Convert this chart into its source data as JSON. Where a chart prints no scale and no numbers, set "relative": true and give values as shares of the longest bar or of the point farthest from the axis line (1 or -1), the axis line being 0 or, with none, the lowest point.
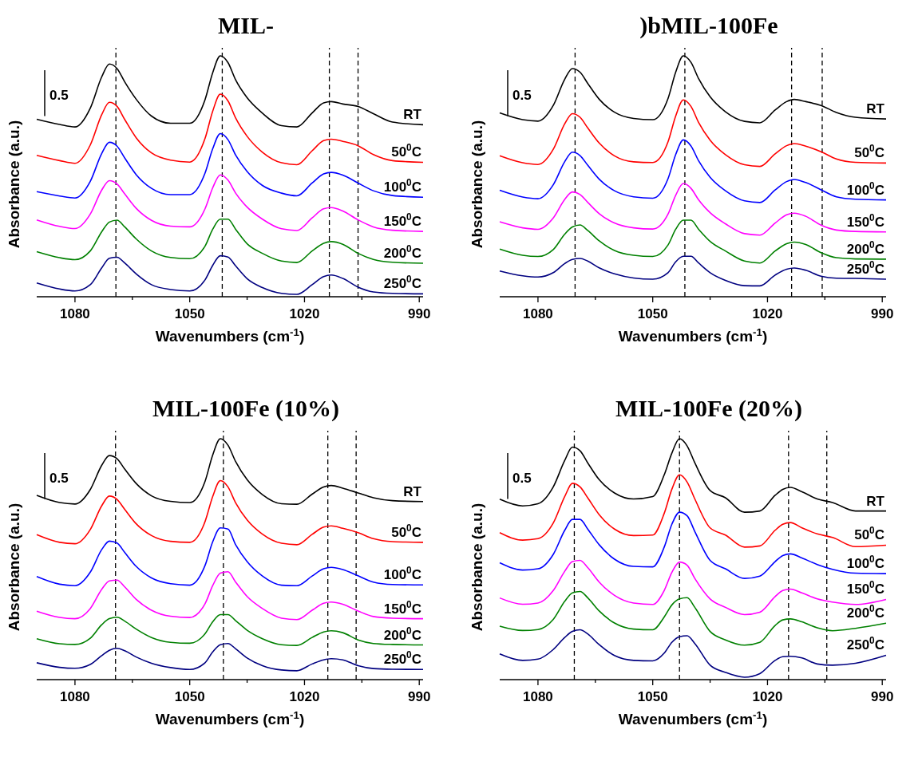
{
  "chart_data": [
    {
      "type": "line",
      "title": "MIL-",
      "xlabel": "Wavenumbers (cm$^{-1}$)",
      "ylabel": "Absorbance (a.u.)",
      "relative": true,
      "xlim": [
        1090,
        989
      ],
      "xticks": [
        1080,
        {
          "value": 1065,
          "label": null
        },
        1050,
        {
          "value": 1035,
          "label": null
        },
        1020,
        {
          "value": 1005,
          "label": null
        },
        990
      ],
      "annotations": [
        "0.5"
      ],
      "x": [
        1090,
        1084,
        1080,
        1076,
        1073,
        1071,
        1069,
        1067,
        1064,
        1060,
        1055,
        1050,
        1046,
        1044,
        1042,
        1040,
        1038,
        1035,
        1031,
        1026,
        1022,
        1018,
        1015,
        1013,
        1010,
        1006,
        1002,
        997,
        989
      ],
      "ref_lines": [
        {
          "axis": "x",
          "value": 1069.3,
          "line_style": "dashed",
          "color": "#000000"
        },
        {
          "axis": "x",
          "value": 1041.5,
          "line_style": "dashed",
          "color": "#000000"
        },
        {
          "axis": "x",
          "value": 1013.5,
          "line_style": "dashed",
          "color": "#000000"
        },
        {
          "axis": "x",
          "value": 1006,
          "line_style": "dashed",
          "color": "#000000"
        }
      ],
      "series": [
        {
          "name": "RT",
          "color": "#000000",
          "values": [
            0.737,
            0.715,
            0.705,
            0.783,
            0.913,
            0.966,
            0.947,
            0.892,
            0.82,
            0.75,
            0.72,
            0.72,
            0.818,
            0.93,
            1.0,
            0.972,
            0.9,
            0.826,
            0.762,
            0.71,
            0.705,
            0.763,
            0.805,
            0.81,
            0.8,
            0.79,
            0.76,
            0.725,
            0.714
          ]
        },
        {
          "name": "50$^{0}$C",
          "color": "#ff0000",
          "values": [
            0.587,
            0.565,
            0.554,
            0.63,
            0.756,
            0.807,
            0.79,
            0.736,
            0.66,
            0.597,
            0.567,
            0.559,
            0.657,
            0.77,
            0.841,
            0.813,
            0.742,
            0.666,
            0.6,
            0.556,
            0.548,
            0.606,
            0.648,
            0.654,
            0.645,
            0.627,
            0.59,
            0.565,
            0.558
          ]
        },
        {
          "name": "100$^{0}$C",
          "color": "#0000ff",
          "values": [
            0.436,
            0.418,
            0.41,
            0.479,
            0.595,
            0.641,
            0.625,
            0.576,
            0.507,
            0.45,
            0.424,
            0.424,
            0.513,
            0.614,
            0.677,
            0.652,
            0.588,
            0.52,
            0.462,
            0.43,
            0.419,
            0.472,
            0.51,
            0.516,
            0.505,
            0.472,
            0.44,
            0.42,
            0.413
          ]
        },
        {
          "name": "150$^{0}$C",
          "color": "#ff00ff",
          "values": [
            0.319,
            0.292,
            0.283,
            0.343,
            0.443,
            0.482,
            0.468,
            0.427,
            0.367,
            0.317,
            0.293,
            0.29,
            0.365,
            0.452,
            0.506,
            0.484,
            0.43,
            0.372,
            0.322,
            0.282,
            0.275,
            0.327,
            0.365,
            0.37,
            0.356,
            0.319,
            0.29,
            0.276,
            0.271
          ]
        },
        {
          "name": "200$^{0}$C",
          "color": "#008000",
          "values": [
            0.187,
            0.162,
            0.154,
            0.19,
            0.27,
            0.31,
            0.318,
            0.29,
            0.24,
            0.19,
            0.163,
            0.158,
            0.21,
            0.28,
            0.322,
            0.322,
            0.28,
            0.22,
            0.18,
            0.148,
            0.142,
            0.19,
            0.222,
            0.229,
            0.218,
            0.18,
            0.155,
            0.143,
            0.139
          ]
        },
        {
          "name": "250$^{0}$C",
          "color": "#000080",
          "values": [
            0.057,
            0.032,
            0.024,
            0.05,
            0.12,
            0.16,
            0.164,
            0.14,
            0.095,
            0.05,
            0.03,
            0.024,
            0.07,
            0.13,
            0.17,
            0.165,
            0.128,
            0.075,
            0.038,
            0.014,
            0.01,
            0.05,
            0.084,
            0.09,
            0.076,
            0.04,
            0.02,
            0.014,
            0.012
          ]
        }
      ]
    },
    {
      "type": "line",
      "title": ")bMIL-100Fe",
      "xlabel": "Wavenumbers (cm$^{-1}$)",
      "ylabel": "Absorbance (a.u.)",
      "relative": true,
      "xlim": [
        1090,
        989
      ],
      "xticks": [
        1080,
        {
          "value": 1065,
          "label": null
        },
        1050,
        {
          "value": 1035,
          "label": null
        },
        1020,
        {
          "value": 1005,
          "label": null
        },
        990
      ],
      "annotations": [
        "0.5"
      ],
      "x": [
        1090,
        1084,
        1080,
        1076,
        1073,
        1071,
        1069,
        1067,
        1064,
        1060,
        1055,
        1050,
        1046,
        1044,
        1042,
        1040,
        1038,
        1035,
        1031,
        1026,
        1022,
        1018,
        1015,
        1013,
        1010,
        1006,
        1002,
        997,
        989
      ],
      "ref_lines": [
        {
          "axis": "x",
          "value": 1070.3,
          "line_style": "dashed",
          "color": "#000000"
        },
        {
          "axis": "x",
          "value": 1041.6,
          "line_style": "dashed",
          "color": "#000000"
        },
        {
          "axis": "x",
          "value": 1013.7,
          "line_style": "dashed",
          "color": "#000000"
        },
        {
          "axis": "x",
          "value": 1005.7,
          "line_style": "dashed",
          "color": "#000000"
        }
      ],
      "series": [
        {
          "name": "RT",
          "color": "#000000",
          "values": [
            0.763,
            0.735,
            0.729,
            0.794,
            0.903,
            0.947,
            0.932,
            0.886,
            0.82,
            0.766,
            0.74,
            0.735,
            0.823,
            0.932,
            1.0,
            0.973,
            0.905,
            0.83,
            0.768,
            0.728,
            0.722,
            0.775,
            0.81,
            0.819,
            0.81,
            0.794,
            0.765,
            0.745,
            0.738
          ]
        },
        {
          "name": "50$^{0}$C",
          "color": "#ff0000",
          "values": [
            0.585,
            0.556,
            0.549,
            0.612,
            0.718,
            0.76,
            0.745,
            0.701,
            0.638,
            0.585,
            0.56,
            0.557,
            0.643,
            0.75,
            0.817,
            0.79,
            0.723,
            0.65,
            0.59,
            0.548,
            0.541,
            0.593,
            0.627,
            0.636,
            0.625,
            0.602,
            0.572,
            0.558,
            0.555
          ]
        },
        {
          "name": "100$^{0}$C",
          "color": "#0000ff",
          "values": [
            0.442,
            0.414,
            0.407,
            0.465,
            0.561,
            0.6,
            0.586,
            0.546,
            0.488,
            0.44,
            0.415,
            0.409,
            0.49,
            0.59,
            0.651,
            0.626,
            0.564,
            0.496,
            0.44,
            0.398,
            0.391,
            0.443,
            0.478,
            0.487,
            0.474,
            0.444,
            0.415,
            0.405,
            0.402
          ]
        },
        {
          "name": "150$^{0}$C",
          "color": "#ff00ff",
          "values": [
            0.311,
            0.286,
            0.28,
            0.327,
            0.404,
            0.435,
            0.424,
            0.392,
            0.345,
            0.306,
            0.286,
            0.281,
            0.343,
            0.421,
            0.47,
            0.45,
            0.402,
            0.349,
            0.303,
            0.262,
            0.256,
            0.306,
            0.34,
            0.347,
            0.334,
            0.297,
            0.277,
            0.271,
            0.269
          ]
        },
        {
          "name": "200$^{0}$C",
          "color": "#008000",
          "values": [
            0.198,
            0.172,
            0.167,
            0.196,
            0.26,
            0.29,
            0.298,
            0.275,
            0.232,
            0.192,
            0.172,
            0.167,
            0.215,
            0.28,
            0.318,
            0.318,
            0.28,
            0.23,
            0.19,
            0.148,
            0.14,
            0.19,
            0.22,
            0.227,
            0.217,
            0.183,
            0.162,
            0.157,
            0.156
          ]
        },
        {
          "name": "250$^{0}$C",
          "color": "#000080",
          "values": [
            0.107,
            0.087,
            0.082,
            0.1,
            0.138,
            0.155,
            0.159,
            0.148,
            0.12,
            0.095,
            0.078,
            0.073,
            0.1,
            0.145,
            0.168,
            0.168,
            0.14,
            0.1,
            0.068,
            0.046,
            0.045,
            0.09,
            0.114,
            0.119,
            0.11,
            0.085,
            0.077,
            0.076,
            0.073
          ]
        }
      ]
    },
    {
      "type": "line",
      "title": "MIL-100Fe (10%)",
      "xlabel": "Wavenumbers (cm$^{-1}$)",
      "ylabel": "Absorbance (a.u.)",
      "relative": true,
      "xlim": [
        1090,
        989
      ],
      "xticks": [
        1080,
        {
          "value": 1065,
          "label": null
        },
        1050,
        {
          "value": 1035,
          "label": null
        },
        1020,
        {
          "value": 1005,
          "label": null
        },
        990
      ],
      "annotations": [
        "0.5"
      ],
      "x": [
        1090,
        1084,
        1080,
        1076,
        1073,
        1071,
        1069,
        1067,
        1064,
        1060,
        1055,
        1050,
        1046,
        1044,
        1042,
        1040,
        1038,
        1035,
        1031,
        1026,
        1022,
        1018,
        1015,
        1013,
        1010,
        1006,
        1002,
        997,
        989
      ],
      "ref_lines": [
        {
          "axis": "x",
          "value": 1069.4,
          "line_style": "dashed",
          "color": "#000000"
        },
        {
          "axis": "x",
          "value": 1041.2,
          "line_style": "dashed",
          "color": "#000000"
        },
        {
          "axis": "x",
          "value": 1013.9,
          "line_style": "dashed",
          "color": "#000000"
        },
        {
          "axis": "x",
          "value": 1006.5,
          "line_style": "dashed",
          "color": "#000000"
        }
      ],
      "series": [
        {
          "name": "RT",
          "color": "#000000",
          "values": [
            0.765,
            0.735,
            0.729,
            0.789,
            0.89,
            0.93,
            0.917,
            0.874,
            0.814,
            0.763,
            0.74,
            0.735,
            0.823,
            0.932,
            1.0,
            0.973,
            0.905,
            0.83,
            0.768,
            0.73,
            0.728,
            0.77,
            0.8,
            0.806,
            0.795,
            0.775,
            0.755,
            0.743,
            0.739
          ]
        },
        {
          "name": "50$^{0}$C",
          "color": "#ff0000",
          "values": [
            0.602,
            0.57,
            0.564,
            0.623,
            0.722,
            0.762,
            0.748,
            0.707,
            0.647,
            0.598,
            0.574,
            0.57,
            0.656,
            0.76,
            0.826,
            0.8,
            0.734,
            0.663,
            0.604,
            0.566,
            0.56,
            0.603,
            0.633,
            0.638,
            0.628,
            0.61,
            0.585,
            0.573,
            0.57
          ]
        },
        {
          "name": "100$^{0}$C",
          "color": "#0000ff",
          "values": [
            0.428,
            0.396,
            0.39,
            0.446,
            0.54,
            0.575,
            0.567,
            0.528,
            0.47,
            0.422,
            0.398,
            0.392,
            0.474,
            0.572,
            0.63,
            0.625,
            0.56,
            0.49,
            0.43,
            0.392,
            0.39,
            0.43,
            0.46,
            0.466,
            0.457,
            0.431,
            0.405,
            0.395,
            0.393
          ]
        },
        {
          "name": "150$^{0}$C",
          "color": "#ff00ff",
          "values": [
            0.284,
            0.258,
            0.253,
            0.295,
            0.375,
            0.41,
            0.413,
            0.385,
            0.333,
            0.288,
            0.263,
            0.258,
            0.315,
            0.39,
            0.442,
            0.448,
            0.405,
            0.345,
            0.295,
            0.255,
            0.249,
            0.288,
            0.317,
            0.322,
            0.313,
            0.285,
            0.262,
            0.255,
            0.253
          ]
        },
        {
          "name": "200$^{0}$C",
          "color": "#008000",
          "values": [
            0.17,
            0.149,
            0.146,
            0.172,
            0.228,
            0.253,
            0.259,
            0.243,
            0.21,
            0.175,
            0.155,
            0.151,
            0.19,
            0.24,
            0.27,
            0.27,
            0.245,
            0.205,
            0.17,
            0.145,
            0.142,
            0.175,
            0.198,
            0.203,
            0.195,
            0.165,
            0.15,
            0.146,
            0.144
          ]
        },
        {
          "name": "250$^{0}$C",
          "color": "#000080",
          "values": [
            0.07,
            0.051,
            0.047,
            0.063,
            0.1,
            0.122,
            0.13,
            0.12,
            0.094,
            0.068,
            0.05,
            0.042,
            0.07,
            0.115,
            0.145,
            0.15,
            0.128,
            0.09,
            0.058,
            0.04,
            0.037,
            0.065,
            0.082,
            0.087,
            0.082,
            0.058,
            0.046,
            0.043,
            0.042
          ]
        }
      ]
    },
    {
      "type": "line",
      "title": "MIL-100Fe (20%)",
      "xlabel": "Wavenumbers (cm$^{-1}$)",
      "ylabel": "Absorbance (a.u.)",
      "relative": true,
      "xlim": [
        1090,
        989
      ],
      "xticks": [
        1080,
        {
          "value": 1065,
          "label": null
        },
        1050,
        {
          "value": 1035,
          "label": null
        },
        1020,
        {
          "value": 1005,
          "label": null
        },
        990
      ],
      "annotations": [
        "0.5"
      ],
      "x": [
        1090,
        1084,
        1080,
        1076,
        1073,
        1071,
        1069,
        1067,
        1064,
        1060,
        1055,
        1050,
        1047,
        1045,
        1043,
        1041,
        1039,
        1035,
        1031,
        1026,
        1022,
        1018,
        1016,
        1014,
        1011,
        1007,
        1003,
        997,
        989
      ],
      "ref_lines": [
        {
          "axis": "x",
          "value": 1070.5,
          "line_style": "dashed",
          "color": "#000000"
        },
        {
          "axis": "x",
          "value": 1043,
          "line_style": "dashed",
          "color": "#000000"
        },
        {
          "axis": "x",
          "value": 1014.5,
          "line_style": "dashed",
          "color": "#000000"
        },
        {
          "axis": "x",
          "value": 1004.5,
          "line_style": "dashed",
          "color": "#000000"
        }
      ],
      "series": [
        {
          "name": "RT",
          "color": "#000000",
          "values": [
            0.749,
            0.721,
            0.73,
            0.8,
            0.91,
            0.965,
            0.95,
            0.9,
            0.83,
            0.775,
            0.75,
            0.76,
            0.85,
            0.94,
            1.0,
            0.97,
            0.9,
            0.785,
            0.755,
            0.695,
            0.7,
            0.765,
            0.79,
            0.798,
            0.78,
            0.75,
            0.735,
            0.7,
            0.7
          ]
        },
        {
          "name": "50$^{0}$C",
          "color": "#ff0000",
          "values": [
            0.61,
            0.579,
            0.585,
            0.65,
            0.76,
            0.815,
            0.8,
            0.755,
            0.685,
            0.625,
            0.598,
            0.6,
            0.69,
            0.79,
            0.85,
            0.82,
            0.75,
            0.63,
            0.6,
            0.55,
            0.555,
            0.62,
            0.645,
            0.652,
            0.63,
            0.605,
            0.59,
            0.552,
            0.558
          ]
        },
        {
          "name": "100$^{0}$C",
          "color": "#0000ff",
          "values": [
            0.485,
            0.455,
            0.46,
            0.52,
            0.62,
            0.665,
            0.665,
            0.625,
            0.56,
            0.5,
            0.47,
            0.468,
            0.55,
            0.645,
            0.695,
            0.68,
            0.615,
            0.495,
            0.46,
            0.42,
            0.43,
            0.49,
            0.515,
            0.522,
            0.505,
            0.478,
            0.458,
            0.442,
            0.44
          ]
        },
        {
          "name": "150$^{0}$C",
          "color": "#ff00ff",
          "values": [
            0.339,
            0.313,
            0.318,
            0.37,
            0.45,
            0.49,
            0.495,
            0.465,
            0.405,
            0.35,
            0.318,
            0.312,
            0.37,
            0.445,
            0.488,
            0.475,
            0.42,
            0.335,
            0.3,
            0.27,
            0.28,
            0.345,
            0.37,
            0.376,
            0.36,
            0.335,
            0.322,
            0.312,
            0.333
          ]
        },
        {
          "name": "200$^{0}$C",
          "color": "#008000",
          "values": [
            0.222,
            0.204,
            0.208,
            0.25,
            0.325,
            0.36,
            0.366,
            0.34,
            0.285,
            0.235,
            0.21,
            0.207,
            0.26,
            0.31,
            0.335,
            0.34,
            0.3,
            0.2,
            0.165,
            0.143,
            0.155,
            0.225,
            0.248,
            0.252,
            0.24,
            0.215,
            0.203,
            0.213,
            0.234
          ]
        },
        {
          "name": "250$^{0}$C",
          "color": "#000080",
          "values": [
            0.107,
            0.08,
            0.085,
            0.125,
            0.175,
            0.2,
            0.207,
            0.19,
            0.145,
            0.1,
            0.08,
            0.078,
            0.11,
            0.155,
            0.178,
            0.182,
            0.15,
            0.06,
            0.03,
            0.01,
            0.025,
            0.08,
            0.095,
            0.097,
            0.09,
            0.065,
            0.06,
            0.068,
            0.101
          ]
        }
      ]
    }
  ]
}
